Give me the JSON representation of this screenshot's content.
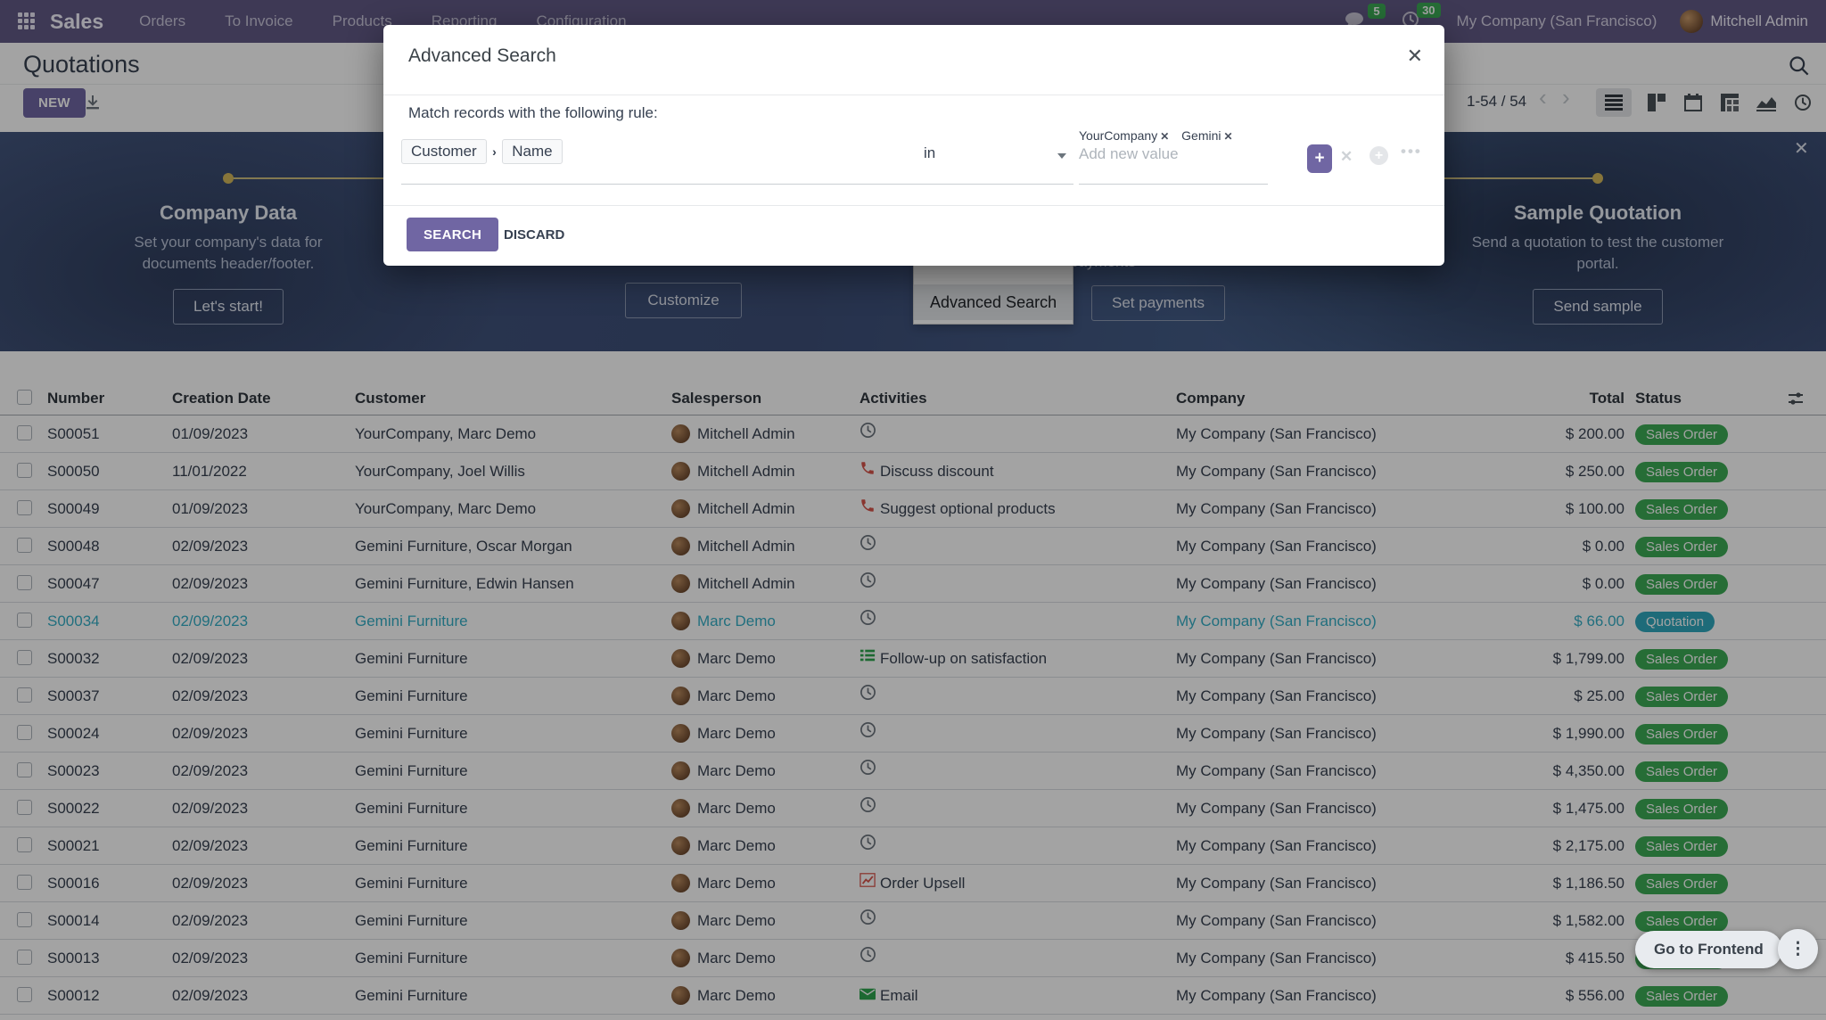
{
  "navbar": {
    "brand": "Sales",
    "menu": [
      "Orders",
      "To Invoice",
      "Products",
      "Reporting",
      "Configuration"
    ],
    "messages_badge": "5",
    "activities_badge": "30",
    "company": "My Company (San Francisco)",
    "user": "Mitchell Admin"
  },
  "control_panel": {
    "title": "Quotations",
    "new_button": "NEW",
    "pager": "1-54 / 54"
  },
  "banner": {
    "left_step": {
      "title": "Company Data",
      "desc_line1": "Set your company's data for",
      "desc_line2": "documents header/footer.",
      "button": "Let's start!"
    },
    "middle_step": {
      "customize_button": "Customize",
      "partial_text": "payments",
      "set_payments_button": "Set payments"
    },
    "right_step": {
      "title": "Sample Quotation",
      "desc_line1": "Send a quotation to test the customer",
      "desc_line2": "portal.",
      "button": "Send sample"
    }
  },
  "dropdown": {
    "item": "Advanced Search"
  },
  "modal": {
    "title": "Advanced Search",
    "rule_label": "Match records with the following rule:",
    "field_chips": [
      "Customer",
      "Name"
    ],
    "operator": "in",
    "tags": [
      "YourCompany",
      "Gemini"
    ],
    "value_placeholder": "Add new value",
    "search_button": "SEARCH",
    "discard_button": "DISCARD"
  },
  "frontend_pill": {
    "label": "Go to Frontend",
    "kebab": "⋮"
  },
  "colors": {
    "primary": "#7066a3",
    "badge_green": "#3cab55",
    "badge_teal": "#2fa8bd",
    "navbar_bg": "#615a86"
  },
  "table": {
    "headers": [
      "Number",
      "Creation Date",
      "Customer",
      "Salesperson",
      "Activities",
      "Company",
      "Total",
      "Status"
    ],
    "rows": [
      {
        "number": "S00051",
        "date": "01/09/2023",
        "customer": "YourCompany, Marc Demo",
        "salesperson": "Mitchell Admin",
        "activity": {
          "icon": "clock",
          "label": ""
        },
        "company": "My Company (San Francisco)",
        "total": "$ 200.00",
        "status": "Sales Order",
        "status_color": "green",
        "highlight": false
      },
      {
        "number": "S00050",
        "date": "11/01/2022",
        "customer": "YourCompany, Joel Willis",
        "salesperson": "Mitchell Admin",
        "activity": {
          "icon": "phone",
          "label": "Discuss discount"
        },
        "company": "My Company (San Francisco)",
        "total": "$ 250.00",
        "status": "Sales Order",
        "status_color": "green",
        "highlight": false
      },
      {
        "number": "S00049",
        "date": "01/09/2023",
        "customer": "YourCompany, Marc Demo",
        "salesperson": "Mitchell Admin",
        "activity": {
          "icon": "phone",
          "label": "Suggest optional products"
        },
        "company": "My Company (San Francisco)",
        "total": "$ 100.00",
        "status": "Sales Order",
        "status_color": "green",
        "highlight": false
      },
      {
        "number": "S00048",
        "date": "02/09/2023",
        "customer": "Gemini Furniture, Oscar Morgan",
        "salesperson": "Mitchell Admin",
        "activity": {
          "icon": "clock",
          "label": ""
        },
        "company": "My Company (San Francisco)",
        "total": "$ 0.00",
        "status": "Sales Order",
        "status_color": "green",
        "highlight": false
      },
      {
        "number": "S00047",
        "date": "02/09/2023",
        "customer": "Gemini Furniture, Edwin Hansen",
        "salesperson": "Mitchell Admin",
        "activity": {
          "icon": "clock",
          "label": ""
        },
        "company": "My Company (San Francisco)",
        "total": "$ 0.00",
        "status": "Sales Order",
        "status_color": "green",
        "highlight": false
      },
      {
        "number": "S00034",
        "date": "02/09/2023",
        "customer": "Gemini Furniture",
        "salesperson": "Marc Demo",
        "activity": {
          "icon": "clock",
          "label": ""
        },
        "company": "My Company (San Francisco)",
        "total": "$ 66.00",
        "status": "Quotation",
        "status_color": "teal",
        "highlight": true
      },
      {
        "number": "S00032",
        "date": "02/09/2023",
        "customer": "Gemini Furniture",
        "salesperson": "Marc Demo",
        "activity": {
          "icon": "list",
          "label": "Follow-up on satisfaction"
        },
        "company": "My Company (San Francisco)",
        "total": "$ 1,799.00",
        "status": "Sales Order",
        "status_color": "green",
        "highlight": false
      },
      {
        "number": "S00037",
        "date": "02/09/2023",
        "customer": "Gemini Furniture",
        "salesperson": "Marc Demo",
        "activity": {
          "icon": "clock",
          "label": ""
        },
        "company": "My Company (San Francisco)",
        "total": "$ 25.00",
        "status": "Sales Order",
        "status_color": "green",
        "highlight": false
      },
      {
        "number": "S00024",
        "date": "02/09/2023",
        "customer": "Gemini Furniture",
        "salesperson": "Marc Demo",
        "activity": {
          "icon": "clock",
          "label": ""
        },
        "company": "My Company (San Francisco)",
        "total": "$ 1,990.00",
        "status": "Sales Order",
        "status_color": "green",
        "highlight": false
      },
      {
        "number": "S00023",
        "date": "02/09/2023",
        "customer": "Gemini Furniture",
        "salesperson": "Marc Demo",
        "activity": {
          "icon": "clock",
          "label": ""
        },
        "company": "My Company (San Francisco)",
        "total": "$ 4,350.00",
        "status": "Sales Order",
        "status_color": "green",
        "highlight": false
      },
      {
        "number": "S00022",
        "date": "02/09/2023",
        "customer": "Gemini Furniture",
        "salesperson": "Marc Demo",
        "activity": {
          "icon": "clock",
          "label": ""
        },
        "company": "My Company (San Francisco)",
        "total": "$ 1,475.00",
        "status": "Sales Order",
        "status_color": "green",
        "highlight": false
      },
      {
        "number": "S00021",
        "date": "02/09/2023",
        "customer": "Gemini Furniture",
        "salesperson": "Marc Demo",
        "activity": {
          "icon": "clock",
          "label": ""
        },
        "company": "My Company (San Francisco)",
        "total": "$ 2,175.00",
        "status": "Sales Order",
        "status_color": "green",
        "highlight": false
      },
      {
        "number": "S00016",
        "date": "02/09/2023",
        "customer": "Gemini Furniture",
        "salesperson": "Marc Demo",
        "activity": {
          "icon": "chart",
          "label": "Order Upsell"
        },
        "company": "My Company (San Francisco)",
        "total": "$ 1,186.50",
        "status": "Sales Order",
        "status_color": "green",
        "highlight": false
      },
      {
        "number": "S00014",
        "date": "02/09/2023",
        "customer": "Gemini Furniture",
        "salesperson": "Marc Demo",
        "activity": {
          "icon": "clock",
          "label": ""
        },
        "company": "My Company (San Francisco)",
        "total": "$ 1,582.00",
        "status": "Sales Order",
        "status_color": "green",
        "highlight": false
      },
      {
        "number": "S00013",
        "date": "02/09/2023",
        "customer": "Gemini Furniture",
        "salesperson": "Marc Demo",
        "activity": {
          "icon": "clock",
          "label": ""
        },
        "company": "My Company (San Francisco)",
        "total": "$ 415.50",
        "status": "Sales Order",
        "status_color": "green",
        "highlight": false
      },
      {
        "number": "S00012",
        "date": "02/09/2023",
        "customer": "Gemini Furniture",
        "salesperson": "Marc Demo",
        "activity": {
          "icon": "email",
          "label": "Email"
        },
        "company": "My Company (San Francisco)",
        "total": "$ 556.00",
        "status": "Sales Order",
        "status_color": "green",
        "highlight": false
      },
      {
        "number": "",
        "date": "",
        "customer": "",
        "salesperson": "",
        "activity": {
          "icon": "email",
          "label": ""
        },
        "company": "",
        "total": "",
        "status": "",
        "status_color": "green",
        "highlight": false,
        "partial": true
      }
    ]
  }
}
